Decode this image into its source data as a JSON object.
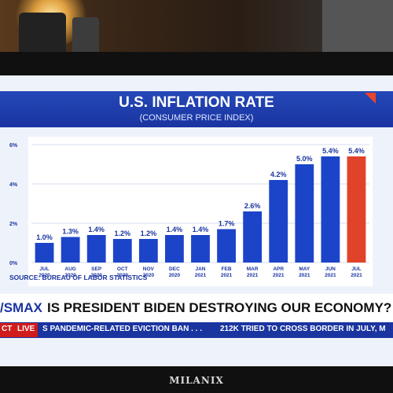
{
  "chart_data": {
    "type": "bar",
    "title": "U.S. INFLATION RATE",
    "subtitle": "(CONSUMER PRICE INDEX)",
    "categories": [
      "JUL 2020",
      "AUG 2020",
      "SEP 2020",
      "OCT 2020",
      "NOV 2020",
      "DEC 2020",
      "JAN 2021",
      "FEB 2021",
      "MAR 2021",
      "APR 2021",
      "MAY 2021",
      "JUN 2021",
      "JUL 2021"
    ],
    "category_lines": [
      [
        "JUL",
        "2020"
      ],
      [
        "AUG",
        "2020"
      ],
      [
        "SEP",
        "2020"
      ],
      [
        "OCT",
        "2020"
      ],
      [
        "NOV",
        "2020"
      ],
      [
        "DEC",
        "2020"
      ],
      [
        "JAN",
        "2021"
      ],
      [
        "FEB",
        "2021"
      ],
      [
        "MAR",
        "2021"
      ],
      [
        "APR",
        "2021"
      ],
      [
        "MAY",
        "2021"
      ],
      [
        "JUN",
        "2021"
      ],
      [
        "JUL",
        "2021"
      ]
    ],
    "values": [
      1.0,
      1.3,
      1.4,
      1.2,
      1.2,
      1.4,
      1.4,
      1.7,
      2.6,
      4.2,
      5.0,
      5.4,
      5.4
    ],
    "value_labels": [
      "1.0%",
      "1.3%",
      "1.4%",
      "1.2%",
      "1.2%",
      "1.4%",
      "1.4%",
      "1.7%",
      "2.6%",
      "4.2%",
      "5.0%",
      "5.4%",
      "5.4%"
    ],
    "yticks": [
      "0%",
      "2%",
      "4%",
      "6%"
    ],
    "ylim": [
      0,
      6
    ],
    "grid": true,
    "bar_color": "#1c44c8",
    "highlight_color": "#e0432a",
    "highlight_index": 12,
    "source": "SOURCE: BUREAU OF LABOR STATISTICS"
  },
  "ticker": {
    "network": "/SMAX",
    "headline": "IS PRESIDENT BIDEN DESTROYING OUR ECONOMY?",
    "ct": "CT",
    "live": "LIVE",
    "story1": "S PANDEMIC-RELATED EVICTION BAN . . .",
    "story2": "212K TRIED TO CROSS BORDER IN JULY, M"
  },
  "tv_brand": "MILANIX"
}
